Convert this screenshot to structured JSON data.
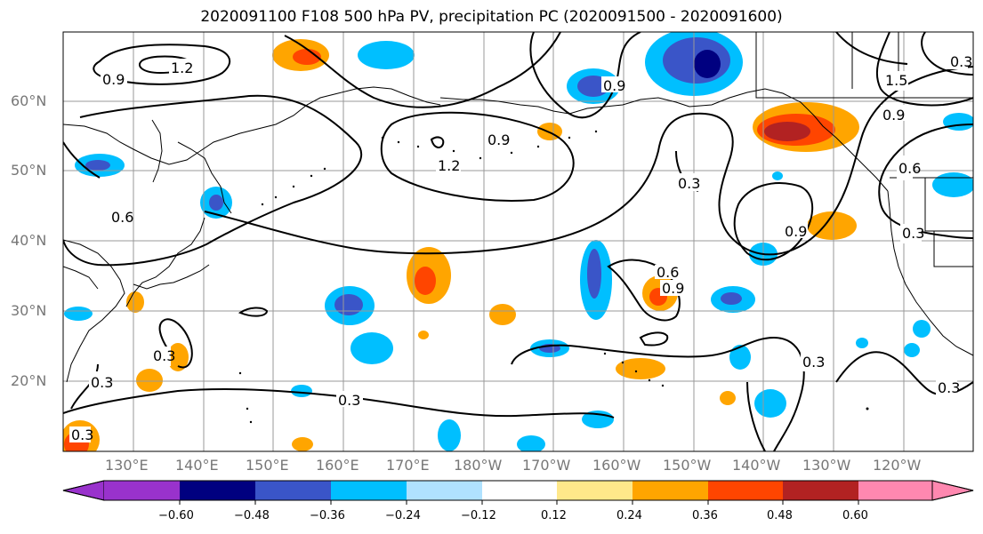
{
  "title": "2020091100 F108 500 hPa PV, precipitation PC (2020091500 - 2020091600)",
  "lat_labels": [
    "60°N",
    "50°N",
    "40°N",
    "30°N",
    "20°N"
  ],
  "lon_labels": [
    "130°E",
    "140°E",
    "150°E",
    "160°E",
    "170°E",
    "180°W",
    "170°W",
    "160°W",
    "150°W",
    "140°W",
    "130°W",
    "120°W"
  ],
  "colorbar": {
    "ticks": [
      "−0.60",
      "−0.48",
      "−0.36",
      "−0.24",
      "−0.12",
      "0.12",
      "0.24",
      "0.36",
      "0.48",
      "0.60"
    ],
    "colors": [
      "#9932cc",
      "#000080",
      "#3a55c8",
      "#00bfff",
      "#b0e2ff",
      "#ffffff",
      "#ffe88a",
      "#ffa500",
      "#ff4500",
      "#b22222",
      "#ff88b0"
    ]
  },
  "contour_labels": [
    "0.9",
    "1.2",
    "0.9",
    "1.2",
    "0.9",
    "0.3",
    "0.6",
    "0.9",
    "0.9",
    "1.5",
    "0.6",
    "0.3",
    "0.9",
    "0.6",
    "0.3",
    "0.3",
    "0.3",
    "0.3",
    "0.3",
    "0.3",
    "0.3"
  ],
  "colors": {
    "coast": "#000000",
    "grid": "#999999",
    "contour": "#000000"
  }
}
